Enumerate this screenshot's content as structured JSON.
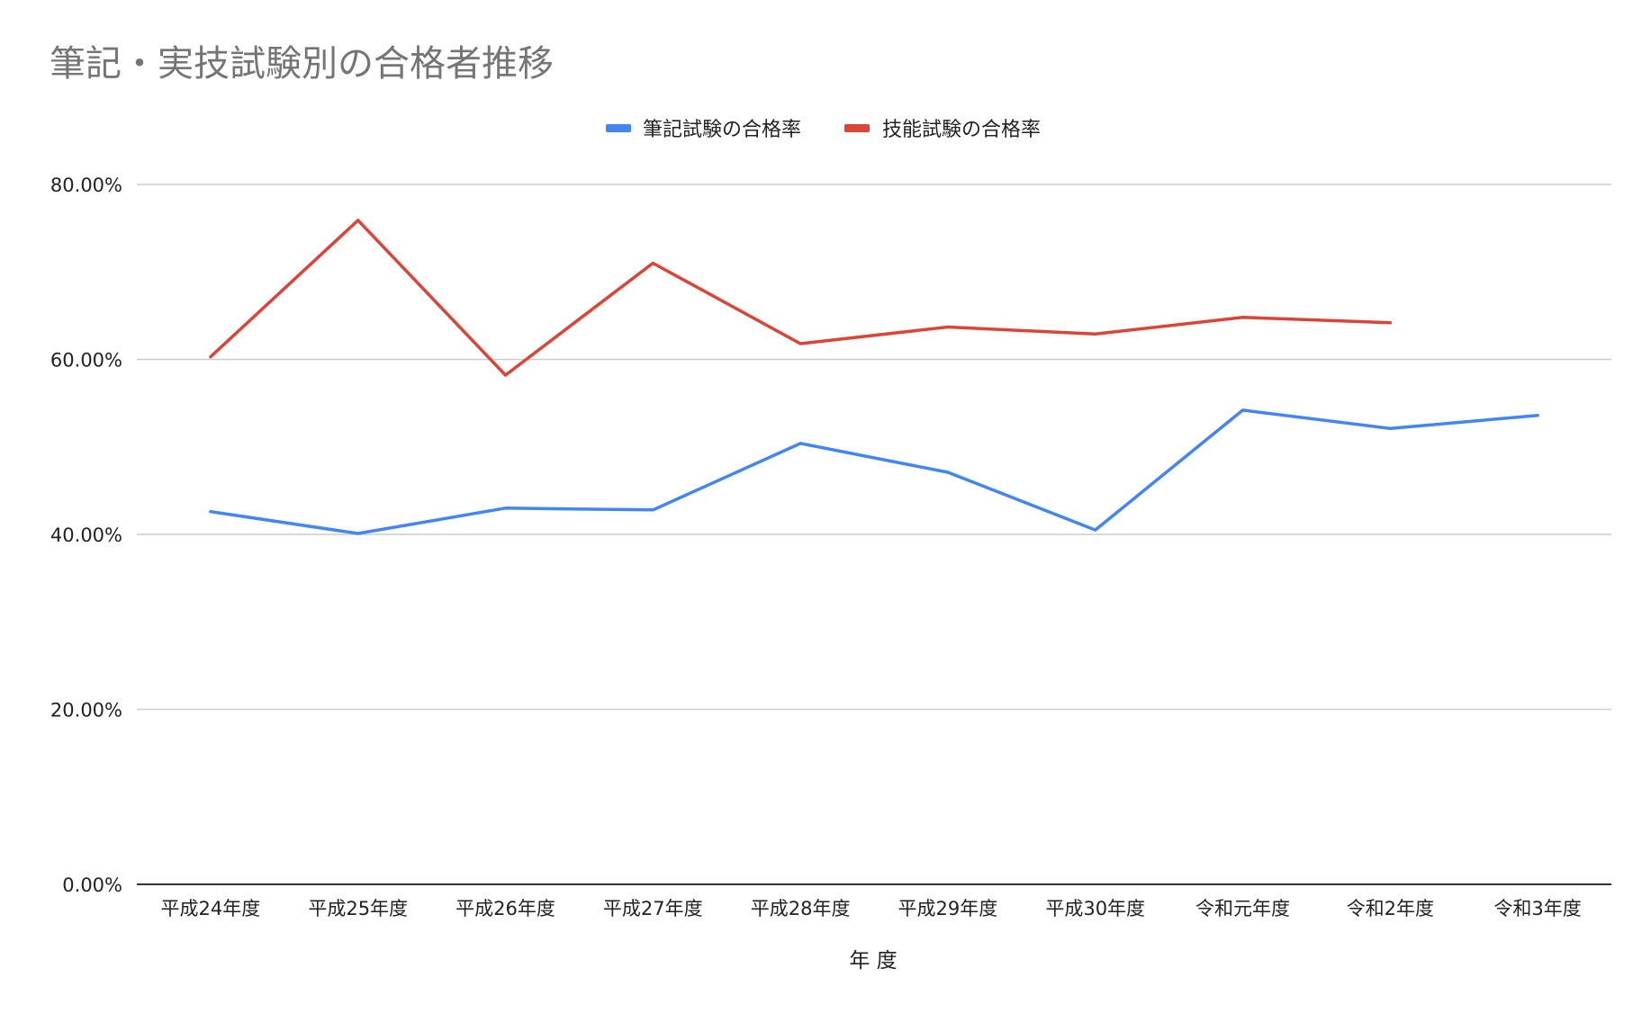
{
  "chart_data": {
    "type": "line",
    "title": "筆記・実技試験別の合格者推移",
    "xlabel": "年 度",
    "ylabel": "",
    "categories": [
      "平成24年度",
      "平成25年度",
      "平成26年度",
      "平成27年度",
      "平成28年度",
      "平成29年度",
      "平成30年度",
      "令和元年度",
      "令和2年度",
      "令和3年度"
    ],
    "series": [
      {
        "name": "筆記試験の合格率",
        "color": "#4285f4",
        "values": [
          42.6,
          40.1,
          43.0,
          42.8,
          50.4,
          47.1,
          40.5,
          54.2,
          52.1,
          53.6
        ]
      },
      {
        "name": "技能試験の合格率",
        "color": "#db4437",
        "values": [
          60.3,
          75.9,
          58.2,
          71.0,
          61.8,
          63.7,
          62.9,
          64.8,
          64.2,
          null
        ]
      }
    ],
    "ylim": [
      0,
      80
    ],
    "yticks": [
      0,
      20,
      40,
      60,
      80
    ],
    "ytick_labels": [
      "0.00%",
      "20.00%",
      "40.00%",
      "60.00%",
      "80.00%"
    ],
    "grid": true,
    "legend_position": "top-center"
  }
}
